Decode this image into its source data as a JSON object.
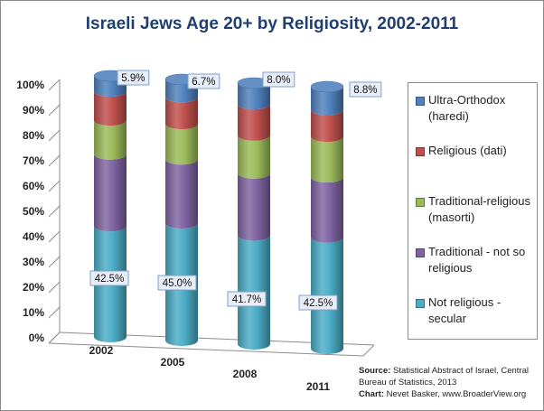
{
  "title": "Israeli Jews Age 20+ by Religiosity,  2002-2011",
  "source": {
    "source_label": "Source",
    "source_text": "Statistical Abstract of Israel, Central Bureau of Statistics, 2013",
    "chart_label": "Chart",
    "chart_text": "Nevet Basker, www.BroaderView.org"
  },
  "chart_data": {
    "type": "bar",
    "stacked": true,
    "three_d": true,
    "title": "Israeli Jews Age 20+ by Religiosity,  2002-2011",
    "categories": [
      "2002",
      "2005",
      "2008",
      "2011"
    ],
    "ylim": [
      0,
      100
    ],
    "y_ticks": [
      "0%",
      "10%",
      "20%",
      "30%",
      "40%",
      "50%",
      "60%",
      "70%",
      "80%",
      "90%",
      "100%"
    ],
    "grid": false,
    "legend_position": "right",
    "series": [
      {
        "name": "Not religious - secular",
        "color": "#4bacc6",
        "values": [
          42.5,
          45.0,
          41.7,
          42.5
        ],
        "labels": [
          "42.5%",
          "45.0%",
          "41.7%",
          "42.5%"
        ]
      },
      {
        "name": "Traditional - not so religious",
        "color": "#8064a2",
        "values": [
          27.5,
          24.5,
          23.8,
          23.0
        ]
      },
      {
        "name": "Traditional-religious (masorti)",
        "color": "#9bbb59",
        "values": [
          13.0,
          13.5,
          14.5,
          15.5
        ]
      },
      {
        "name": "Religious (dati)",
        "color": "#c0504d",
        "values": [
          11.1,
          10.3,
          12.0,
          10.2
        ]
      },
      {
        "name": "Ultra-Orthodox (haredi)",
        "color": "#4f81bd",
        "values": [
          5.9,
          6.7,
          8.0,
          8.8
        ],
        "labels": [
          "5.9%",
          "6.7%",
          "8.0%",
          "8.8%"
        ]
      }
    ]
  },
  "legend": [
    {
      "label": "Ultra-Orthodox (haredi)",
      "color": "#4f81bd"
    },
    {
      "label": "Religious (dati)",
      "color": "#c0504d"
    },
    {
      "label": "Traditional-religious (masorti)",
      "color": "#9bbb59"
    },
    {
      "label": "Traditional - not so religious",
      "color": "#8064a2"
    },
    {
      "label": "Not religious - secular",
      "color": "#4bacc6"
    }
  ]
}
